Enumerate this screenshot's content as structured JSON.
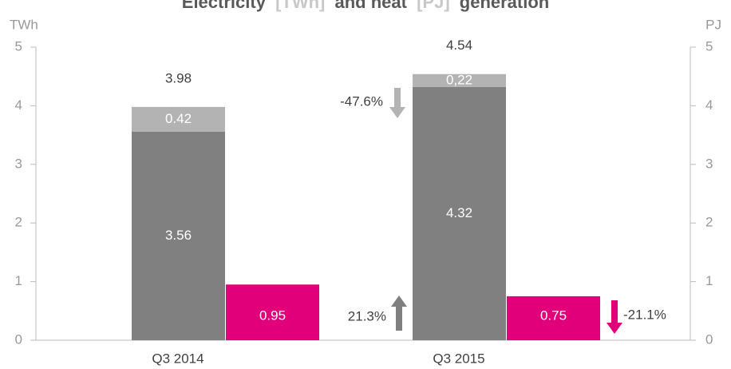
{
  "chart_data": {
    "type": "bar",
    "title_parts": [
      "Electricity",
      "[TWh]",
      "and heat",
      "[PJ]",
      "generation"
    ],
    "y_label": "TWh",
    "y2_label": "PJ",
    "categories": [
      "Q3 2014",
      "Q3 2015"
    ],
    "series": [
      {
        "color": "#808080",
        "values": [
          3.56,
          4.32
        ]
      },
      {
        "color": "#b3b3b3",
        "values": [
          0.42,
          0.22
        ],
        "value_labels": [
          "0.42",
          "0,22"
        ]
      },
      {
        "color": "#e2007a",
        "values": [
          0.95,
          0.75
        ],
        "axis": "y2"
      }
    ],
    "totals": [
      3.98,
      4.54
    ],
    "annotations": [
      "-47.6%",
      "21.3%",
      "-21.1%"
    ],
    "ylim": [
      0,
      5
    ],
    "yticks": [
      0,
      1,
      2,
      3,
      4,
      5
    ],
    "y2lim": [
      0,
      5
    ],
    "y2ticks": [
      0,
      1,
      2,
      3,
      4,
      5
    ]
  }
}
